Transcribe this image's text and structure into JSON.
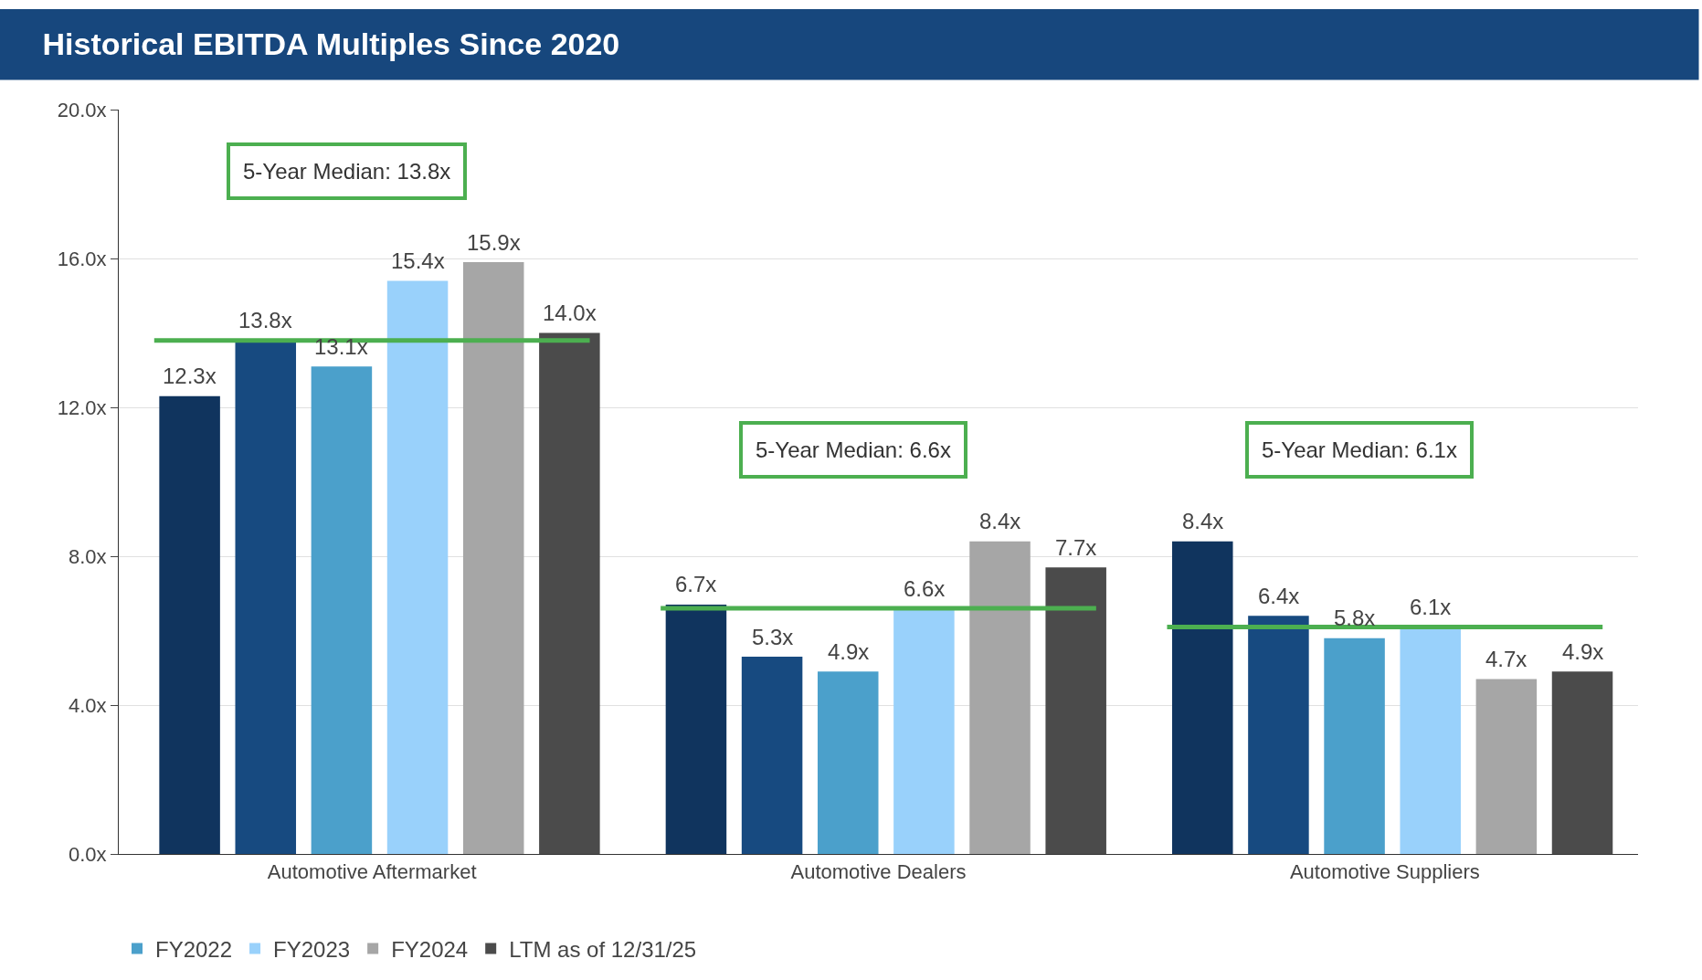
{
  "chart_data": {
    "type": "bar",
    "title": "Historical EBITDA Multiples Since 2020",
    "categories": [
      "Automotive Aftermarket",
      "Automotive Dealers",
      "Automotive Suppliers"
    ],
    "series": [
      {
        "color": "#10345e",
        "values": [
          12.3,
          6.7,
          8.4
        ],
        "value_labels": [
          "12.3x",
          "6.7x",
          "8.4x"
        ]
      },
      {
        "color": "#174a80",
        "values": [
          13.8,
          5.3,
          6.4
        ],
        "value_labels": [
          "13.8x",
          "5.3x",
          "6.4x"
        ]
      },
      {
        "name": "FY2022",
        "color": "#4ba0cb",
        "values": [
          13.1,
          4.9,
          5.8
        ],
        "value_labels": [
          "13.1x",
          "4.9x",
          "5.8x"
        ]
      },
      {
        "name": "FY2023",
        "color": "#99d1fb",
        "values": [
          15.4,
          6.6,
          6.1
        ],
        "value_labels": [
          "15.4x",
          "6.6x",
          "6.1x"
        ]
      },
      {
        "name": "FY2024",
        "color": "#a6a6a6",
        "values": [
          15.9,
          8.4,
          4.7
        ],
        "value_labels": [
          "15.9x",
          "8.4x",
          "4.7x"
        ]
      },
      {
        "name": "LTM as of 12/31/25",
        "color": "#4b4b4b",
        "values": [
          14.0,
          7.7,
          4.9
        ],
        "value_labels": [
          "14.0x",
          "7.7x",
          "4.9x"
        ]
      }
    ],
    "ref_lines": [
      {
        "axis": "y",
        "value": 13.8,
        "color": "#4caf50"
      },
      {
        "axis": "y",
        "value": 6.6,
        "color": "#4caf50"
      },
      {
        "axis": "y",
        "value": 6.1,
        "color": "#4caf50"
      }
    ],
    "annotations": [
      "5-Year Median: 13.8x",
      "5-Year Median: 6.6x",
      "5-Year Median: 6.1x"
    ],
    "ylim": [
      0,
      20
    ],
    "yticks": [
      {
        "value": 0,
        "label": "0.0x"
      },
      {
        "value": 4,
        "label": "4.0x"
      },
      {
        "value": 8,
        "label": "8.0x"
      },
      {
        "value": 12,
        "label": "12.0x"
      },
      {
        "value": 16,
        "label": "16.0x"
      },
      {
        "value": 20,
        "label": "20.0x"
      }
    ],
    "grid": "y",
    "legend": "bottom"
  }
}
